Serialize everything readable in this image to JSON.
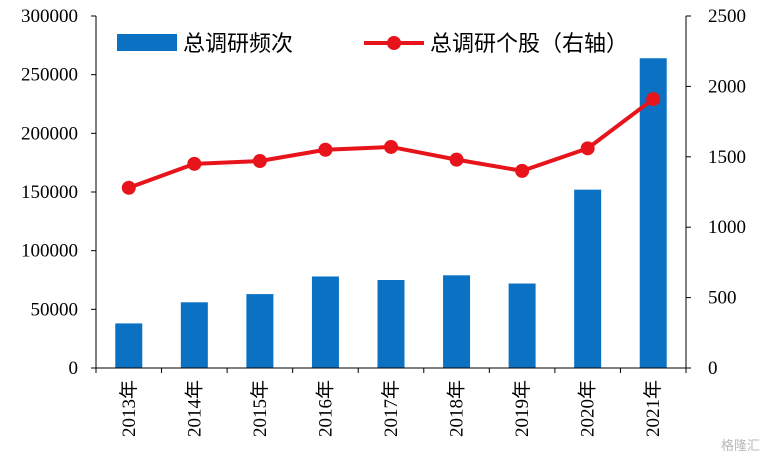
{
  "chart_data": {
    "type": "bar",
    "categories": [
      "2013年",
      "2014年",
      "2015年",
      "2016年",
      "2017年",
      "2018年",
      "2019年",
      "2020年",
      "2021年"
    ],
    "series": [
      {
        "name": "总调研频次",
        "type": "bar",
        "axis": "left",
        "color": "#0b72c3",
        "values": [
          38000,
          56000,
          63000,
          78000,
          75000,
          79000,
          72000,
          152000,
          264000
        ]
      },
      {
        "name": "总调研个股（右轴）",
        "type": "line",
        "axis": "right",
        "color": "#e8141b",
        "values": [
          1280,
          1450,
          1470,
          1550,
          1570,
          1480,
          1400,
          1560,
          1910
        ]
      }
    ],
    "left_axis": {
      "ylim": [
        0,
        300000
      ],
      "ticks": [
        "0",
        "50000",
        "100000",
        "150000",
        "200000",
        "250000",
        "300000"
      ]
    },
    "right_axis": {
      "ylim": [
        0,
        2500
      ],
      "ticks": [
        "0",
        "500",
        "1000",
        "1500",
        "2000",
        "2500"
      ]
    },
    "legend_position": "top",
    "grid": false
  },
  "watermark_text": "格隆汇"
}
